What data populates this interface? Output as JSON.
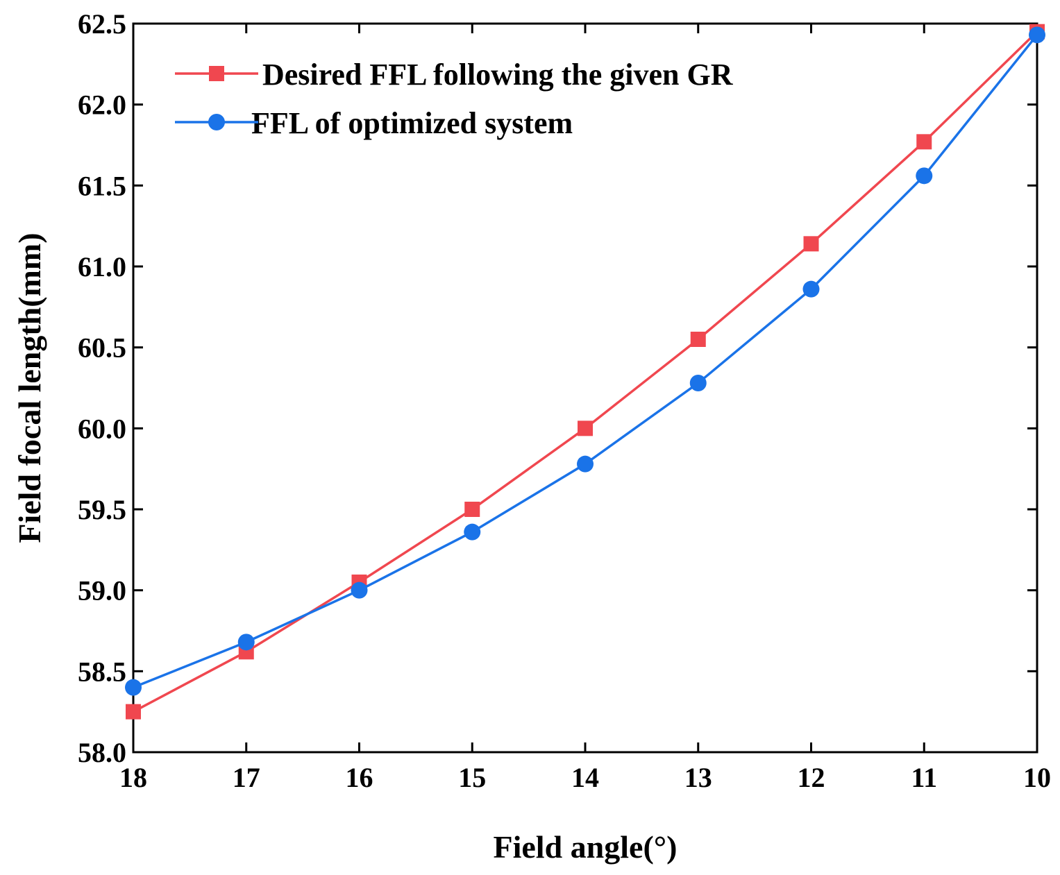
{
  "chart_data": {
    "type": "line",
    "xlabel": "Field angle(°)",
    "ylabel": "Field focal length(mm)",
    "x": [
      18,
      17,
      16,
      15,
      14,
      13,
      12,
      11,
      10
    ],
    "xlim": [
      18,
      10
    ],
    "x_reversed": true,
    "ylim": [
      58.0,
      62.5
    ],
    "x_ticks": [
      "18",
      "17",
      "16",
      "15",
      "14",
      "13",
      "12",
      "11",
      "10"
    ],
    "y_ticks": [
      "58.0",
      "58.5",
      "59.0",
      "59.5",
      "60.0",
      "60.5",
      "61.0",
      "61.5",
      "62.0",
      "62.5"
    ],
    "grid": false,
    "legend_position": "top-left",
    "series": [
      {
        "name": "Desired FFL following the given GR",
        "color": "#f0474f",
        "marker": "square",
        "values": [
          58.25,
          58.62,
          59.05,
          59.5,
          60.0,
          60.55,
          61.14,
          61.77,
          62.45
        ]
      },
      {
        "name": "FFL of optimized system",
        "color": "#1a73e8",
        "marker": "circle",
        "values": [
          58.4,
          58.68,
          59.0,
          59.36,
          59.78,
          60.28,
          60.86,
          61.56,
          62.43
        ]
      }
    ]
  }
}
